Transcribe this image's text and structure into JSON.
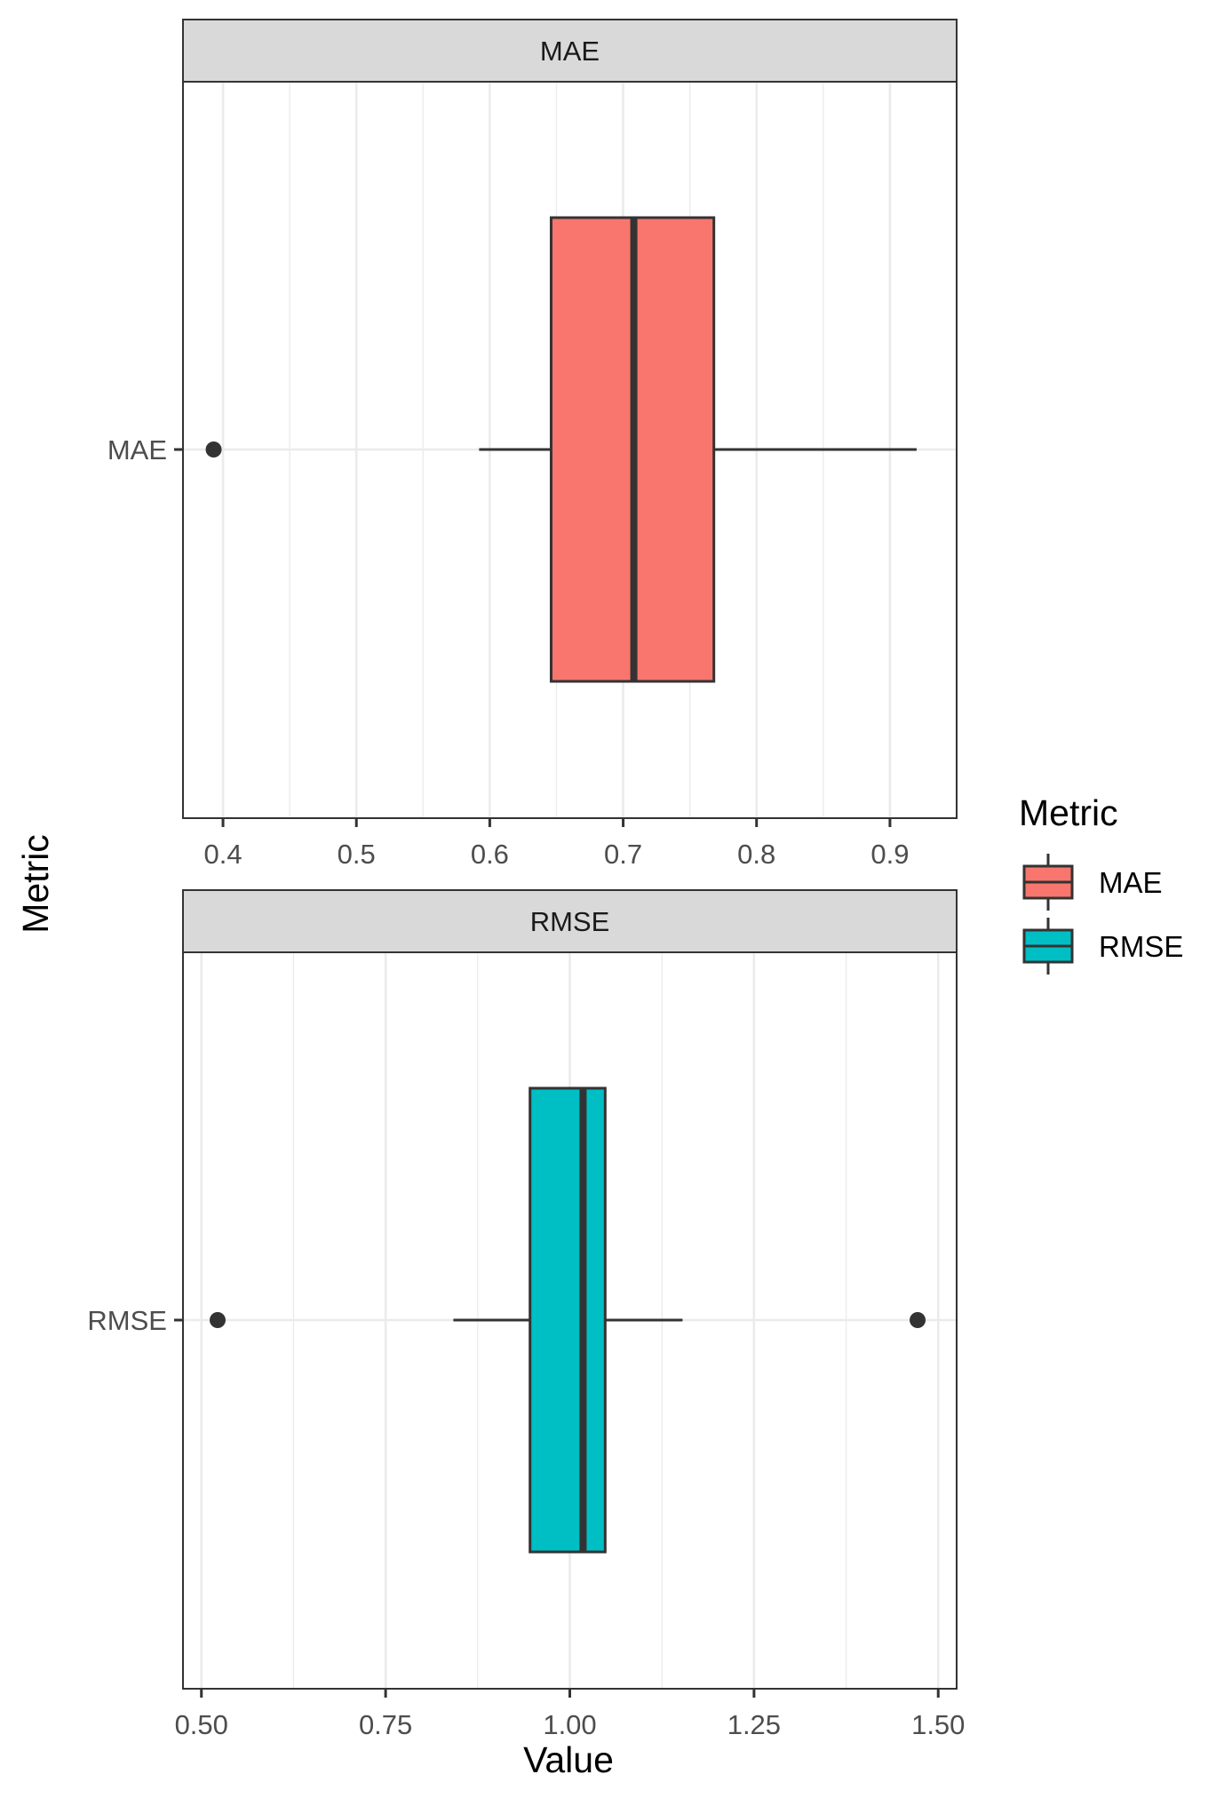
{
  "chart_data": {
    "type": "boxplot",
    "layout": "faceted-horizontal",
    "xlabel": "Value",
    "ylabel": "Metric",
    "legend": {
      "title": "Metric",
      "position": "right",
      "entries": [
        {
          "label": "MAE",
          "color": "#F8766D"
        },
        {
          "label": "RMSE",
          "color": "#00BFC4"
        }
      ]
    },
    "grid": true,
    "panels": [
      {
        "strip": "MAE",
        "category": "MAE",
        "color": "#F8766D",
        "xlim": [
          0.37,
          0.95
        ],
        "xticks": [
          0.4,
          0.5,
          0.6,
          0.7,
          0.8,
          0.9
        ],
        "xtick_labels": [
          "0.4",
          "0.5",
          "0.6",
          "0.7",
          "0.8",
          "0.9"
        ],
        "box": {
          "whisker_low": 0.592,
          "q1": 0.646,
          "median": 0.708,
          "q3": 0.768,
          "whisker_high": 0.92
        },
        "outliers": [
          0.393
        ]
      },
      {
        "strip": "RMSE",
        "category": "RMSE",
        "color": "#00BFC4",
        "xlim": [
          0.475,
          1.525
        ],
        "xticks": [
          0.5,
          0.75,
          1.0,
          1.25,
          1.5
        ],
        "xtick_labels": [
          "0.50",
          "0.75",
          "1.00",
          "1.25",
          "1.50"
        ],
        "box": {
          "whisker_low": 0.842,
          "q1": 0.946,
          "median": 1.018,
          "q3": 1.048,
          "whisker_high": 1.153
        },
        "outliers": [
          0.522,
          1.472
        ]
      }
    ]
  }
}
